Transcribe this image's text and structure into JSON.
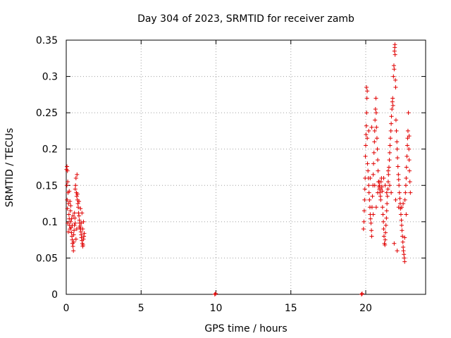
{
  "chart_data": {
    "type": "scatter",
    "title": "Day 304 of 2023, SRMTID for receiver zamb",
    "xlabel": "GPS time / hours",
    "ylabel": "SRMTID / TECUs",
    "xlim": [
      0,
      24
    ],
    "ylim": [
      0,
      0.35
    ],
    "x_ticks": [
      0,
      5,
      10,
      15,
      20
    ],
    "x_tick_labels": [
      "0",
      "5",
      "10",
      "15",
      "20"
    ],
    "y_ticks": [
      0,
      0.05,
      0.1,
      0.15,
      0.2,
      0.25,
      0.3,
      0.35
    ],
    "y_tick_labels": [
      "0",
      "0.05",
      "0.1",
      "0.15",
      "0.2",
      "0.25",
      "0.3",
      "0.35"
    ],
    "grid": true,
    "marker": "plus",
    "marker_color": "#e00000",
    "series": [
      {
        "name": "SRMTID",
        "color": "#e00000",
        "points": [
          [
            0.02,
            0.172
          ],
          [
            0.05,
            0.176
          ],
          [
            0.08,
            0.17
          ],
          [
            0.04,
            0.15
          ],
          [
            0.1,
            0.155
          ],
          [
            0.12,
            0.14
          ],
          [
            0.06,
            0.13
          ],
          [
            0.15,
            0.125
          ],
          [
            0.08,
            0.118
          ],
          [
            0.18,
            0.11
          ],
          [
            0.2,
            0.104
          ],
          [
            0.1,
            0.098
          ],
          [
            0.22,
            0.095
          ],
          [
            0.25,
            0.09
          ],
          [
            0.14,
            0.086
          ],
          [
            0.28,
            0.115
          ],
          [
            0.3,
            0.1
          ],
          [
            0.32,
            0.092
          ],
          [
            0.35,
            0.085
          ],
          [
            0.38,
            0.08
          ],
          [
            0.4,
            0.075
          ],
          [
            0.42,
            0.07
          ],
          [
            0.45,
            0.066
          ],
          [
            0.48,
            0.06
          ],
          [
            0.5,
            0.072
          ],
          [
            0.52,
            0.088
          ],
          [
            0.55,
            0.095
          ],
          [
            0.58,
            0.105
          ],
          [
            0.6,
            0.145
          ],
          [
            0.62,
            0.15
          ],
          [
            0.65,
            0.16
          ],
          [
            0.68,
            0.14
          ],
          [
            0.7,
            0.135
          ],
          [
            0.72,
            0.165
          ],
          [
            0.75,
            0.13
          ],
          [
            0.78,
            0.125
          ],
          [
            0.8,
            0.12
          ],
          [
            0.82,
            0.112
          ],
          [
            0.85,
            0.108
          ],
          [
            0.88,
            0.102
          ],
          [
            0.9,
            0.098
          ],
          [
            0.92,
            0.094
          ],
          [
            0.95,
            0.09
          ],
          [
            0.98,
            0.086
          ],
          [
            1.0,
            0.082
          ],
          [
            1.02,
            0.078
          ],
          [
            1.05,
            0.074
          ],
          [
            1.08,
            0.07
          ],
          [
            1.1,
            0.066
          ],
          [
            1.12,
            0.068
          ],
          [
            1.15,
            0.076
          ],
          [
            1.18,
            0.08
          ],
          [
            1.2,
            0.084
          ],
          [
            0.3,
            0.122
          ],
          [
            0.45,
            0.108
          ],
          [
            0.55,
            0.112
          ],
          [
            0.75,
            0.138
          ],
          [
            0.85,
            0.128
          ],
          [
            0.95,
            0.118
          ],
          [
            1.05,
            0.112
          ],
          [
            1.15,
            0.1
          ],
          [
            0.6,
            0.098
          ],
          [
            0.7,
            0.09
          ],
          [
            0.4,
            0.095
          ],
          [
            0.25,
            0.128
          ],
          [
            0.35,
            0.104
          ],
          [
            0.5,
            0.082
          ],
          [
            0.65,
            0.076
          ],
          [
            0.9,
            0.092
          ],
          [
            1.0,
            0.098
          ],
          [
            1.1,
            0.09
          ],
          [
            0.2,
            0.142
          ],
          [
            9.92,
            0.0
          ],
          [
            9.98,
            0.001
          ],
          [
            19.72,
            0.0
          ],
          [
            19.76,
            0.001
          ],
          [
            19.85,
            0.09
          ],
          [
            19.88,
            0.1
          ],
          [
            19.9,
            0.115
          ],
          [
            19.92,
            0.13
          ],
          [
            19.94,
            0.145
          ],
          [
            19.96,
            0.16
          ],
          [
            19.98,
            0.19
          ],
          [
            20.0,
            0.205
          ],
          [
            20.02,
            0.22
          ],
          [
            20.04,
            0.232
          ],
          [
            20.06,
            0.25
          ],
          [
            20.08,
            0.27
          ],
          [
            20.05,
            0.285
          ],
          [
            20.1,
            0.28
          ],
          [
            20.12,
            0.18
          ],
          [
            20.15,
            0.17
          ],
          [
            20.18,
            0.16
          ],
          [
            20.2,
            0.15
          ],
          [
            20.22,
            0.14
          ],
          [
            20.25,
            0.13
          ],
          [
            20.28,
            0.12
          ],
          [
            20.3,
            0.11
          ],
          [
            20.32,
            0.104
          ],
          [
            20.35,
            0.098
          ],
          [
            20.38,
            0.088
          ],
          [
            20.4,
            0.08
          ],
          [
            20.42,
            0.12
          ],
          [
            20.45,
            0.135
          ],
          [
            20.48,
            0.15
          ],
          [
            20.5,
            0.165
          ],
          [
            20.52,
            0.18
          ],
          [
            20.55,
            0.195
          ],
          [
            20.58,
            0.21
          ],
          [
            20.6,
            0.225
          ],
          [
            20.62,
            0.24
          ],
          [
            20.65,
            0.255
          ],
          [
            20.68,
            0.27
          ],
          [
            20.7,
            0.25
          ],
          [
            20.72,
            0.23
          ],
          [
            20.75,
            0.215
          ],
          [
            20.78,
            0.2
          ],
          [
            20.8,
            0.185
          ],
          [
            20.82,
            0.17
          ],
          [
            20.85,
            0.155
          ],
          [
            20.88,
            0.148
          ],
          [
            20.9,
            0.145
          ],
          [
            20.92,
            0.15
          ],
          [
            20.95,
            0.14
          ],
          [
            20.98,
            0.135
          ],
          [
            21.0,
            0.13
          ],
          [
            21.02,
            0.155
          ],
          [
            21.05,
            0.16
          ],
          [
            21.08,
            0.148
          ],
          [
            21.1,
            0.142
          ],
          [
            21.12,
            0.12
          ],
          [
            21.15,
            0.11
          ],
          [
            21.18,
            0.1
          ],
          [
            21.2,
            0.09
          ],
          [
            21.22,
            0.08
          ],
          [
            21.25,
            0.07
          ],
          [
            21.28,
            0.068
          ],
          [
            21.3,
            0.075
          ],
          [
            21.32,
            0.085
          ],
          [
            21.35,
            0.095
          ],
          [
            21.38,
            0.105
          ],
          [
            21.4,
            0.115
          ],
          [
            21.42,
            0.125
          ],
          [
            21.45,
            0.135
          ],
          [
            21.48,
            0.145
          ],
          [
            21.5,
            0.155
          ],
          [
            21.52,
            0.165
          ],
          [
            21.55,
            0.175
          ],
          [
            21.58,
            0.185
          ],
          [
            21.6,
            0.195
          ],
          [
            21.62,
            0.205
          ],
          [
            21.65,
            0.215
          ],
          [
            21.68,
            0.225
          ],
          [
            21.7,
            0.235
          ],
          [
            21.72,
            0.245
          ],
          [
            21.75,
            0.255
          ],
          [
            21.78,
            0.265
          ],
          [
            21.8,
            0.27
          ],
          [
            21.82,
            0.26
          ],
          [
            21.85,
            0.3
          ],
          [
            21.88,
            0.315
          ],
          [
            21.9,
            0.31
          ],
          [
            21.92,
            0.335
          ],
          [
            21.94,
            0.34
          ],
          [
            21.95,
            0.344
          ],
          [
            21.96,
            0.33
          ],
          [
            21.98,
            0.295
          ],
          [
            22.0,
            0.285
          ],
          [
            22.02,
            0.24
          ],
          [
            22.05,
            0.225
          ],
          [
            22.08,
            0.21
          ],
          [
            22.1,
            0.2
          ],
          [
            22.12,
            0.188
          ],
          [
            22.15,
            0.176
          ],
          [
            22.18,
            0.165
          ],
          [
            22.2,
            0.158
          ],
          [
            22.22,
            0.15
          ],
          [
            22.25,
            0.14
          ],
          [
            22.28,
            0.132
          ],
          [
            22.3,
            0.125
          ],
          [
            22.32,
            0.118
          ],
          [
            22.35,
            0.11
          ],
          [
            22.38,
            0.102
          ],
          [
            22.4,
            0.095
          ],
          [
            22.42,
            0.088
          ],
          [
            22.45,
            0.08
          ],
          [
            22.48,
            0.072
          ],
          [
            22.5,
            0.065
          ],
          [
            22.52,
            0.06
          ],
          [
            22.55,
            0.055
          ],
          [
            22.58,
            0.05
          ],
          [
            22.6,
            0.045
          ],
          [
            22.62,
            0.13
          ],
          [
            22.65,
            0.14
          ],
          [
            22.68,
            0.15
          ],
          [
            22.7,
            0.16
          ],
          [
            22.72,
            0.175
          ],
          [
            22.75,
            0.19
          ],
          [
            22.78,
            0.205
          ],
          [
            22.8,
            0.215
          ],
          [
            22.82,
            0.225
          ],
          [
            22.85,
            0.25
          ],
          [
            22.88,
            0.2
          ],
          [
            22.9,
            0.185
          ],
          [
            22.92,
            0.17
          ],
          [
            22.95,
            0.155
          ],
          [
            22.98,
            0.14
          ],
          [
            22.6,
            0.078
          ],
          [
            22.4,
            0.12
          ],
          [
            22.1,
            0.06
          ],
          [
            21.9,
            0.07
          ],
          [
            21.6,
            0.15
          ],
          [
            21.4,
            0.14
          ],
          [
            21.2,
            0.16
          ],
          [
            21.0,
            0.145
          ],
          [
            20.9,
            0.155
          ],
          [
            20.7,
            0.12
          ],
          [
            20.5,
            0.11
          ],
          [
            20.3,
            0.16
          ],
          [
            20.1,
            0.215
          ],
          [
            20.2,
            0.225
          ],
          [
            20.4,
            0.23
          ],
          [
            20.6,
            0.15
          ],
          [
            20.8,
            0.14
          ],
          [
            21.3,
            0.15
          ],
          [
            21.5,
            0.17
          ],
          [
            21.7,
            0.14
          ],
          [
            22.0,
            0.13
          ],
          [
            22.2,
            0.12
          ],
          [
            22.5,
            0.125
          ],
          [
            22.7,
            0.11
          ],
          [
            22.9,
            0.218
          ]
        ]
      }
    ]
  }
}
